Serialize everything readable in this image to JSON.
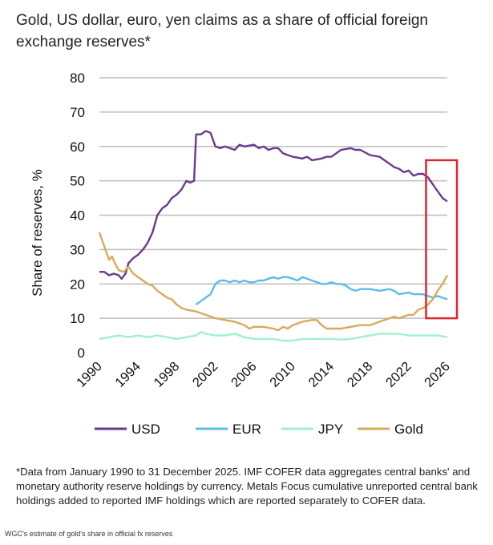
{
  "title": "Gold, US dollar, euro, yen claims as a share of official foreign exchange reserves*",
  "footnote": "*Data from January 1990 to 31 December 2025. IMF COFER data aggregates central banks' and monetary authority reserve holdings by currency. Metals Focus cumulative unreported central bank holdings added to reported IMF holdings which are reported separately to COFER data.",
  "caption": "WGC's estimate of gold's share in official fx reserves",
  "colors": {
    "usd": "#6b3a8c",
    "eur": "#5bbcec",
    "jpy": "#9ff0cf",
    "gold": "#d8ab5a",
    "grid": "#bdbdbd",
    "highlight": "#e0262d"
  },
  "chart_data": {
    "type": "line",
    "ylabel": "Share of reserves, %",
    "xlabel": "",
    "xlim": [
      1990,
      2026
    ],
    "ylim": [
      0,
      80
    ],
    "yticks": [
      0,
      10,
      20,
      30,
      40,
      50,
      60,
      70,
      80
    ],
    "xticks": [
      "1990",
      "1994",
      "1998",
      "2002",
      "2006",
      "2010",
      "2014",
      "2018",
      "2022",
      "2026"
    ],
    "legend_position": "bottom",
    "grid": "horizontal",
    "annotation": "highlight box around 2024-2026",
    "highlight_range": {
      "x": [
        2023.8,
        2027
      ],
      "y": [
        10,
        56
      ]
    },
    "series": [
      {
        "name": "USD",
        "color_key": "usd",
        "points": [
          [
            1990,
            23.5
          ],
          [
            1990.5,
            23.5
          ],
          [
            1991,
            22.5
          ],
          [
            1991.5,
            23
          ],
          [
            1992,
            22.5
          ],
          [
            1992.3,
            21.5
          ],
          [
            1992.7,
            23
          ],
          [
            1993,
            26
          ],
          [
            1993.5,
            27.5
          ],
          [
            1994,
            28.5
          ],
          [
            1994.5,
            30
          ],
          [
            1995,
            32
          ],
          [
            1995.5,
            35
          ],
          [
            1996,
            40
          ],
          [
            1996.5,
            42
          ],
          [
            1997,
            43
          ],
          [
            1997.5,
            45
          ],
          [
            1998,
            46
          ],
          [
            1998.5,
            47.5
          ],
          [
            1999,
            50
          ],
          [
            1999.4,
            49.5
          ],
          [
            1999.8,
            50
          ],
          [
            2000,
            63.5
          ],
          [
            2000.5,
            63.5
          ],
          [
            2001,
            64.5
          ],
          [
            2001.5,
            64
          ],
          [
            2002,
            60
          ],
          [
            2002.5,
            59.5
          ],
          [
            2003,
            60
          ],
          [
            2003.5,
            59.5
          ],
          [
            2004,
            59
          ],
          [
            2004.5,
            60.5
          ],
          [
            2005,
            60
          ],
          [
            2006,
            60.5
          ],
          [
            2006.5,
            59.5
          ],
          [
            2007,
            60
          ],
          [
            2007.5,
            59
          ],
          [
            2008,
            59.5
          ],
          [
            2008.5,
            59.5
          ],
          [
            2009,
            58
          ],
          [
            2009.5,
            57.5
          ],
          [
            2010,
            57
          ],
          [
            2011,
            56.5
          ],
          [
            2011.5,
            57
          ],
          [
            2012,
            56
          ],
          [
            2013,
            56.5
          ],
          [
            2013.5,
            57
          ],
          [
            2014,
            57
          ],
          [
            2014.5,
            58
          ],
          [
            2015,
            59
          ],
          [
            2016,
            59.5
          ],
          [
            2016.5,
            59
          ],
          [
            2017,
            59
          ],
          [
            2018,
            57.5
          ],
          [
            2019,
            57
          ],
          [
            2019.5,
            56
          ],
          [
            2020,
            55
          ],
          [
            2020.5,
            54
          ],
          [
            2021,
            53.5
          ],
          [
            2021.5,
            52.5
          ],
          [
            2022,
            53
          ],
          [
            2022.5,
            51.5
          ],
          [
            2023,
            52
          ],
          [
            2023.5,
            52
          ],
          [
            2024,
            51
          ],
          [
            2024.5,
            49
          ],
          [
            2025,
            47
          ],
          [
            2025.5,
            45
          ],
          [
            2026,
            44
          ]
        ]
      },
      {
        "name": "EUR",
        "color_key": "eur",
        "points": [
          [
            2000,
            14
          ],
          [
            2000.5,
            15
          ],
          [
            2001,
            16
          ],
          [
            2001.5,
            17
          ],
          [
            2002,
            20
          ],
          [
            2002.5,
            21
          ],
          [
            2003,
            21
          ],
          [
            2003.5,
            20.5
          ],
          [
            2004,
            21
          ],
          [
            2004.5,
            20.5
          ],
          [
            2005,
            21
          ],
          [
            2005.5,
            20.5
          ],
          [
            2006,
            20.5
          ],
          [
            2006.5,
            21
          ],
          [
            2007,
            21
          ],
          [
            2007.5,
            21.5
          ],
          [
            2008,
            22
          ],
          [
            2008.5,
            21.5
          ],
          [
            2009,
            22
          ],
          [
            2009.5,
            22
          ],
          [
            2010,
            21.5
          ],
          [
            2010.5,
            21
          ],
          [
            2011,
            22
          ],
          [
            2011.5,
            21.5
          ],
          [
            2012,
            21
          ],
          [
            2012.5,
            20.5
          ],
          [
            2013,
            20
          ],
          [
            2013.5,
            20
          ],
          [
            2014,
            20.5
          ],
          [
            2014.5,
            20
          ],
          [
            2015,
            20
          ],
          [
            2015.5,
            19.5
          ],
          [
            2016,
            18.5
          ],
          [
            2016.5,
            18
          ],
          [
            2017,
            18.5
          ],
          [
            2018,
            18.5
          ],
          [
            2019,
            18
          ],
          [
            2020,
            18.5
          ],
          [
            2020.5,
            18
          ],
          [
            2021,
            17
          ],
          [
            2022,
            17.5
          ],
          [
            2022.5,
            17
          ],
          [
            2023,
            17
          ],
          [
            2023.5,
            17
          ],
          [
            2024,
            16.5
          ],
          [
            2024.5,
            16
          ],
          [
            2025,
            16.5
          ],
          [
            2025.5,
            16
          ],
          [
            2026,
            15.5
          ]
        ]
      },
      {
        "name": "JPY",
        "color_key": "jpy",
        "points": [
          [
            1990,
            4
          ],
          [
            1991,
            4.5
          ],
          [
            1992,
            5
          ],
          [
            1993,
            4.5
          ],
          [
            1994,
            5
          ],
          [
            1995,
            4.5
          ],
          [
            1996,
            5
          ],
          [
            1997,
            4.5
          ],
          [
            1998,
            4
          ],
          [
            1999,
            4.5
          ],
          [
            2000,
            5
          ],
          [
            2000.5,
            6
          ],
          [
            2001,
            5.5
          ],
          [
            2002,
            5
          ],
          [
            2003,
            5
          ],
          [
            2004,
            5.5
          ],
          [
            2005,
            4.5
          ],
          [
            2006,
            4
          ],
          [
            2007,
            4
          ],
          [
            2008,
            4
          ],
          [
            2009,
            3.5
          ],
          [
            2010,
            3.5
          ],
          [
            2011,
            4
          ],
          [
            2012,
            4
          ],
          [
            2013,
            4
          ],
          [
            2014,
            4
          ],
          [
            2015,
            3.8
          ],
          [
            2016,
            4
          ],
          [
            2017,
            4.5
          ],
          [
            2018,
            5
          ],
          [
            2019,
            5.5
          ],
          [
            2020,
            5.5
          ],
          [
            2021,
            5.5
          ],
          [
            2022,
            5
          ],
          [
            2023,
            5
          ],
          [
            2024,
            5
          ],
          [
            2025,
            5
          ],
          [
            2026,
            4.5
          ]
        ]
      },
      {
        "name": "Gold",
        "color_key": "gold",
        "points": [
          [
            1990,
            35
          ],
          [
            1990.5,
            31
          ],
          [
            1991,
            27
          ],
          [
            1991.3,
            28
          ],
          [
            1991.6,
            26
          ],
          [
            1992,
            24
          ],
          [
            1992.5,
            23.5
          ],
          [
            1993,
            25
          ],
          [
            1993.5,
            23
          ],
          [
            1994,
            22
          ],
          [
            1994.5,
            21
          ],
          [
            1995,
            20
          ],
          [
            1995.5,
            19.5
          ],
          [
            1996,
            18
          ],
          [
            1996.5,
            17
          ],
          [
            1997,
            16
          ],
          [
            1997.5,
            15.5
          ],
          [
            1998,
            14
          ],
          [
            1998.5,
            13
          ],
          [
            1999,
            12.5
          ],
          [
            2000,
            12
          ],
          [
            2000.5,
            11.5
          ],
          [
            2001,
            11
          ],
          [
            2002,
            10
          ],
          [
            2003,
            9.5
          ],
          [
            2004,
            9
          ],
          [
            2005,
            8
          ],
          [
            2005.5,
            7
          ],
          [
            2006,
            7.5
          ],
          [
            2007,
            7.5
          ],
          [
            2008,
            7
          ],
          [
            2008.5,
            6.5
          ],
          [
            2009,
            7.5
          ],
          [
            2009.5,
            7
          ],
          [
            2010,
            8
          ],
          [
            2011,
            9
          ],
          [
            2012,
            9.5
          ],
          [
            2012.5,
            9.5
          ],
          [
            2013,
            8
          ],
          [
            2013.5,
            7
          ],
          [
            2014,
            7
          ],
          [
            2015,
            7
          ],
          [
            2016,
            7.5
          ],
          [
            2017,
            8
          ],
          [
            2018,
            8
          ],
          [
            2018.5,
            8.5
          ],
          [
            2019,
            9
          ],
          [
            2020,
            10
          ],
          [
            2020.5,
            10.5
          ],
          [
            2021,
            10
          ],
          [
            2022,
            11
          ],
          [
            2022.5,
            11
          ],
          [
            2023,
            12.5
          ],
          [
            2023.5,
            13
          ],
          [
            2024,
            14
          ],
          [
            2024.5,
            15.5
          ],
          [
            2025,
            18
          ],
          [
            2025.5,
            20
          ],
          [
            2026,
            22.5
          ]
        ]
      }
    ]
  }
}
